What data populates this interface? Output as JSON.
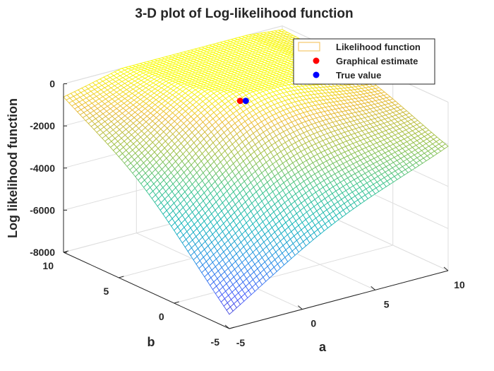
{
  "chart_data": {
    "type": "surface3d",
    "title": "3-D plot of Log-likelihood function",
    "xlabel": "a",
    "ylabel": "b",
    "zlabel": "Log likelihood function",
    "xlim": [
      -5,
      10
    ],
    "ylim": [
      -5,
      10
    ],
    "zlim": [
      -8000,
      0
    ],
    "xticks": [
      "-5",
      "0",
      "5",
      "10"
    ],
    "yticks": [
      "-5",
      "0",
      "5",
      "10"
    ],
    "zticks": [
      "-8000",
      "-6000",
      "-4000",
      "-2000",
      "0"
    ],
    "grid": true,
    "colormap": "parula",
    "legend": {
      "placement": "top-right",
      "entries": [
        "Likelihood function",
        "Graphical estimate",
        "True value"
      ]
    },
    "surface": {
      "name": "Likelihood function",
      "corners": [
        {
          "a": -5,
          "b": -5,
          "z": -7600
        },
        {
          "a": 10,
          "b": -5,
          "z": -2300
        },
        {
          "a": -5,
          "b": 10,
          "z": -1000
        },
        {
          "a": 10,
          "b": 10,
          "z": -450
        }
      ],
      "maximum": {
        "a": 2,
        "b": 3,
        "z": 0
      }
    },
    "points": [
      {
        "name": "Graphical estimate",
        "a": 2,
        "b": 3,
        "z": 0,
        "color": "#ff0000"
      },
      {
        "name": "True value",
        "a": 2,
        "b": 3,
        "z": 0,
        "color": "#0000ff"
      }
    ]
  }
}
